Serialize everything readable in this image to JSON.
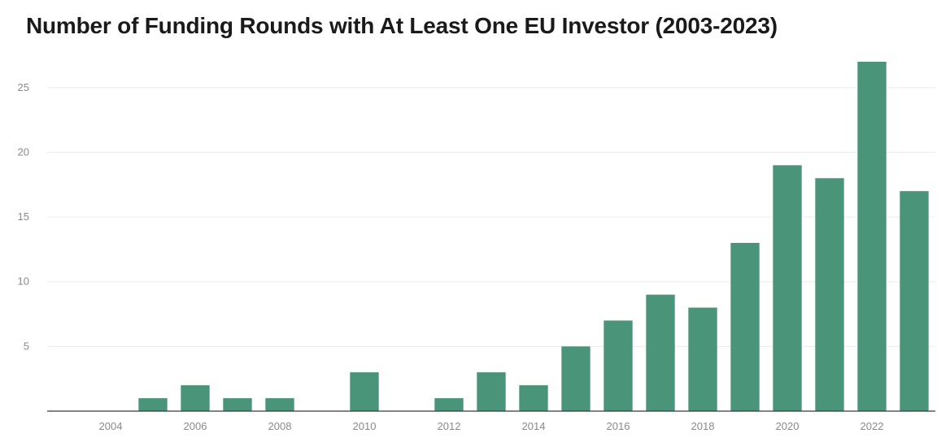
{
  "chart_data": {
    "type": "bar",
    "title": "Number of Funding Rounds with At Least One EU Investor (2003-2023)",
    "xlabel": "",
    "ylabel": "",
    "categories": [
      "2003",
      "2004",
      "2005",
      "2006",
      "2007",
      "2008",
      "2009",
      "2010",
      "2011",
      "2012",
      "2013",
      "2014",
      "2015",
      "2016",
      "2017",
      "2018",
      "2019",
      "2020",
      "2021",
      "2022",
      "2023"
    ],
    "values": [
      0,
      0,
      1,
      2,
      1,
      1,
      0,
      3,
      0,
      1,
      3,
      2,
      5,
      7,
      9,
      8,
      13,
      19,
      18,
      27,
      17
    ],
    "x_tick_labels": [
      "2004",
      "2006",
      "2008",
      "2010",
      "2012",
      "2014",
      "2016",
      "2018",
      "2020",
      "2022"
    ],
    "y_ticks": [
      5,
      10,
      15,
      20,
      25
    ],
    "ylim": [
      0,
      28
    ],
    "grid": true,
    "legend": "none",
    "colors": {
      "bar": "#4a9479",
      "grid": "#ececec",
      "axis": "#3a3a3a",
      "tick_text": "#8a8a8a"
    }
  }
}
